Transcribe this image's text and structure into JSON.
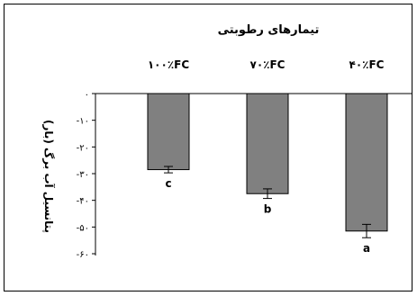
{
  "chart_data": {
    "type": "bar",
    "title": "تیمارهای رطوبتی",
    "ylabel": "پتانسیل آب برگ (بار)",
    "categories": [
      "۱۰۰٪FC",
      "۷۰٪FC",
      "۴۰٪FC"
    ],
    "values": [
      -28.5,
      -37.5,
      -51.5
    ],
    "errors": [
      1.2,
      1.8,
      2.5
    ],
    "significance_letters": [
      "c",
      "b",
      "a"
    ],
    "ylim": [
      -60,
      0
    ],
    "yticks": [
      0,
      -10,
      -20,
      -30,
      -40,
      -50,
      -60
    ],
    "ytick_labels": [
      "۰",
      "-۱۰",
      "-۲۰",
      "-۳۰",
      "-۴۰",
      "-۵۰",
      "-۶۰"
    ],
    "category_axis_position": "top",
    "grid": false,
    "bar_color": "#808080"
  }
}
